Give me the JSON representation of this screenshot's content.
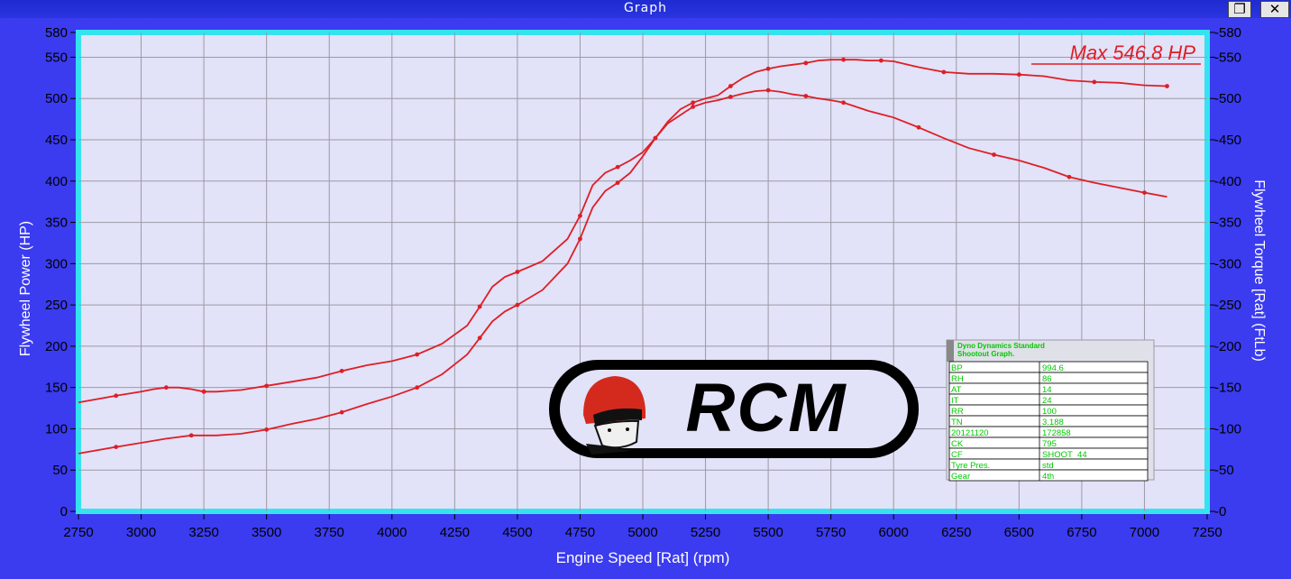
{
  "window": {
    "title": "Graph",
    "restore_glyph": "❐",
    "close_glyph": "✕"
  },
  "max_label": "Max 546.8 HP",
  "colors": {
    "background": "#3b3bf0",
    "plot_background": "#e2e2f8",
    "plot_border": "#35e3f0",
    "grid": "#9a9aa6",
    "series": "#dd1f26",
    "info_text": "#00c800"
  },
  "logo": {
    "text": "RCM",
    "icon": "helmet-icon"
  },
  "info_box": {
    "title_line1": "Dyno Dynamics Standard",
    "title_line2": "Shootout Graph.",
    "rows": [
      [
        "BP",
        "994.6"
      ],
      [
        "RH",
        "86"
      ],
      [
        "AT",
        "14"
      ],
      [
        "IT",
        "24"
      ],
      [
        "RR",
        "100"
      ],
      [
        "TN",
        "3.188"
      ],
      [
        "20121120",
        "172858"
      ],
      [
        "CK",
        "795"
      ],
      [
        "CF",
        "SHOOT_44"
      ],
      [
        "Tyre Pres.",
        "std"
      ],
      [
        "Gear",
        "4th"
      ]
    ]
  },
  "chart_data": {
    "type": "line",
    "xlabel": "Engine Speed [Rat] (rpm)",
    "ylabel": "Flywheel Power (HP)",
    "y2label": "Flywheel Torque [Rat] (FtLb)",
    "xlim": [
      2750,
      7250
    ],
    "ylim": [
      0,
      580
    ],
    "y2lim": [
      0,
      580
    ],
    "xticks": [
      2750,
      3000,
      3250,
      3500,
      3750,
      4000,
      4250,
      4500,
      4750,
      5000,
      5250,
      5500,
      5750,
      6000,
      6250,
      6500,
      6750,
      7000,
      7250
    ],
    "yticks": [
      0,
      50,
      100,
      150,
      200,
      250,
      300,
      350,
      400,
      450,
      500,
      550,
      580
    ],
    "grid": true,
    "series": [
      {
        "axis": "left",
        "x": [
          2750,
          2900,
          3000,
          3100,
          3200,
          3300,
          3400,
          3500,
          3600,
          3700,
          3800,
          3900,
          4000,
          4100,
          4200,
          4300,
          4350,
          4400,
          4450,
          4500,
          4600,
          4700,
          4750,
          4800,
          4850,
          4900,
          4950,
          5000,
          5050,
          5100,
          5150,
          5200,
          5250,
          5300,
          5350,
          5400,
          5450,
          5500,
          5550,
          5600,
          5650,
          5700,
          5750,
          5800,
          5850,
          5900,
          5950,
          6000,
          6100,
          6200,
          6300,
          6400,
          6500,
          6600,
          6700,
          6800,
          6900,
          7000,
          7090
        ],
        "y": [
          70,
          78,
          83,
          88,
          92,
          92,
          94,
          99,
          106,
          112,
          120,
          130,
          139,
          150,
          166,
          190,
          210,
          230,
          242,
          250,
          268,
          300,
          330,
          368,
          388,
          398,
          410,
          430,
          452,
          472,
          487,
          495,
          500,
          504,
          515,
          525,
          532,
          536,
          539,
          541,
          543,
          546,
          547,
          547,
          547,
          546,
          546,
          545,
          538,
          532,
          530,
          530,
          529,
          527,
          522,
          520,
          519,
          516,
          515
        ]
      },
      {
        "axis": "right",
        "x": [
          2750,
          2900,
          3000,
          3050,
          3100,
          3150,
          3200,
          3250,
          3300,
          3400,
          3500,
          3600,
          3700,
          3800,
          3900,
          4000,
          4100,
          4200,
          4300,
          4350,
          4400,
          4450,
          4500,
          4600,
          4700,
          4750,
          4800,
          4850,
          4900,
          4950,
          5000,
          5050,
          5100,
          5150,
          5200,
          5250,
          5300,
          5350,
          5400,
          5450,
          5500,
          5550,
          5600,
          5650,
          5700,
          5750,
          5800,
          5900,
          6000,
          6100,
          6200,
          6300,
          6400,
          6500,
          6600,
          6700,
          6800,
          6900,
          7000,
          7090
        ],
        "y": [
          132,
          140,
          145,
          148,
          150,
          150,
          148,
          145,
          145,
          147,
          152,
          157,
          162,
          170,
          177,
          182,
          190,
          203,
          225,
          248,
          272,
          284,
          290,
          303,
          330,
          358,
          395,
          410,
          417,
          425,
          435,
          452,
          470,
          480,
          490,
          495,
          498,
          502,
          506,
          509,
          510,
          508,
          505,
          503,
          500,
          498,
          495,
          485,
          477,
          465,
          452,
          440,
          432,
          425,
          416,
          405,
          398,
          392,
          386,
          381
        ]
      }
    ]
  }
}
